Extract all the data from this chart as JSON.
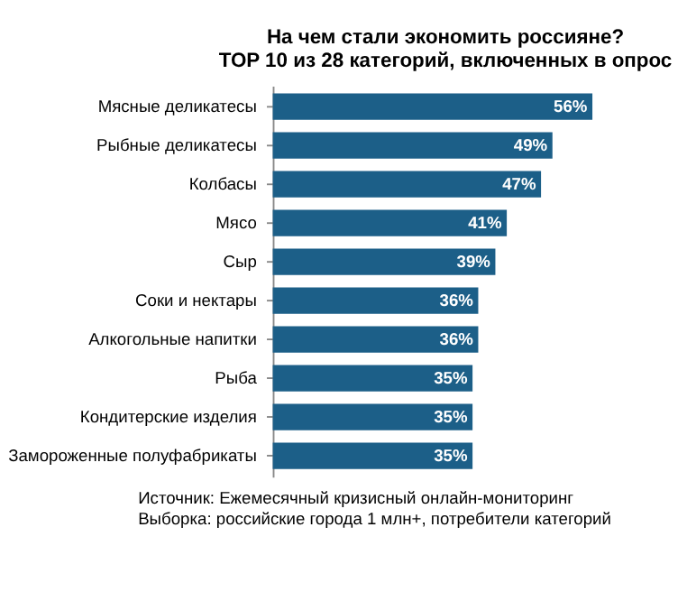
{
  "chart_data": {
    "type": "bar",
    "orientation": "horizontal",
    "title": "На чем стали экономить россияне?\nTOP 10 из 28 категорий, включенных в опрос",
    "categories": [
      "Мясные деликатесы",
      "Рыбные деликатесы",
      "Колбасы",
      "Мясо",
      "Сыр",
      "Соки и нектары",
      "Алкогольные напитки",
      "Рыба",
      "Кондитерские изделия",
      "Замороженные полуфабрикаты"
    ],
    "values": [
      56,
      49,
      47,
      41,
      39,
      36,
      36,
      35,
      35,
      35
    ],
    "value_labels": [
      "56%",
      "49%",
      "47%",
      "41%",
      "39%",
      "36%",
      "36%",
      "35%",
      "35%",
      "35%"
    ],
    "color": "#1c5f88",
    "grid": false,
    "tick_labels": "y",
    "annotations": [
      "Источник: Ежемесячный кризисный онлайн-мониторинг",
      "Выборка: российские города 1 млн+, потребители категорий"
    ]
  }
}
